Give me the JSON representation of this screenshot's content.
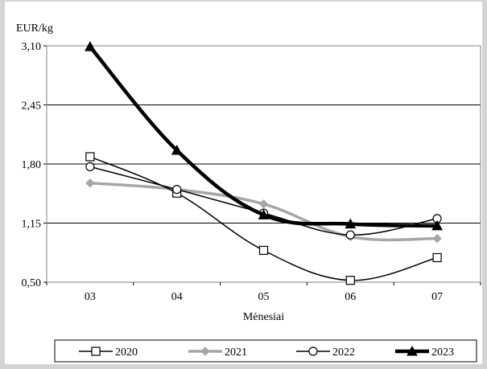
{
  "chart_data": {
    "type": "line",
    "title": "",
    "ylabel": "EUR/kg",
    "xlabel": "Mėnesiai",
    "categories": [
      "03",
      "04",
      "05",
      "06",
      "07"
    ],
    "ylim": [
      0.5,
      3.1
    ],
    "yticks": [
      "3,10",
      "2,45",
      "1,80",
      "1,15",
      "0,50"
    ],
    "ytick_values": [
      3.1,
      2.45,
      1.8,
      1.15,
      0.5
    ],
    "grid": "horizontal",
    "legend_position": "bottom",
    "series": [
      {
        "name": "2020",
        "values": [
          1.88,
          1.48,
          0.85,
          0.52,
          0.77
        ],
        "color": "#000000",
        "marker": "square-open",
        "stroke": "thin"
      },
      {
        "name": "2021",
        "values": [
          1.59,
          1.52,
          1.36,
          1.0,
          0.98
        ],
        "color": "#a6a6a6",
        "marker": "diamond-filled",
        "stroke": "medium"
      },
      {
        "name": "2022",
        "values": [
          1.77,
          1.52,
          1.26,
          1.02,
          1.2
        ],
        "color": "#000000",
        "marker": "circle-open",
        "stroke": "thin"
      },
      {
        "name": "2023",
        "values": [
          3.09,
          1.95,
          1.24,
          1.14,
          1.12
        ],
        "color": "#000000",
        "marker": "triangle-filled",
        "stroke": "thick"
      }
    ]
  }
}
